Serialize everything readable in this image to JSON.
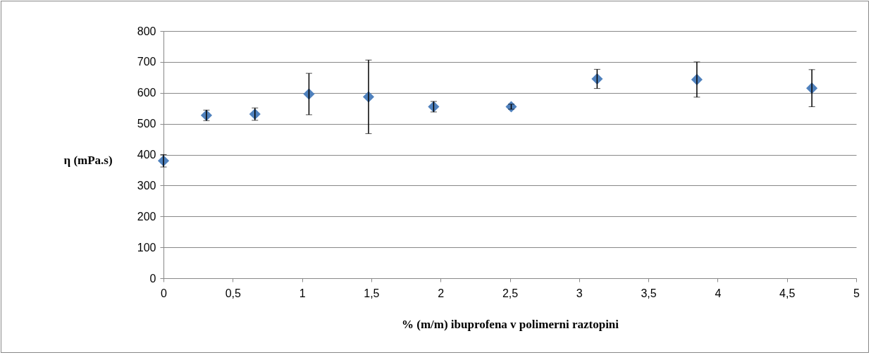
{
  "chart_data": {
    "type": "scatter",
    "xlabel": "% (m/m) ibuprofena v polimerni raztopini",
    "ylabel": "η (mPa.s)",
    "x": [
      0,
      0.31,
      0.66,
      1.05,
      1.48,
      1.95,
      2.51,
      3.13,
      3.85,
      4.68
    ],
    "series": [
      {
        "color": "#4f81bd",
        "values": [
          380,
          527,
          531,
          596,
          587,
          555,
          555,
          645,
          643,
          615
        ],
        "errors": [
          20,
          17,
          20,
          67,
          119,
          17,
          8,
          31,
          57,
          60
        ]
      }
    ],
    "xlim": [
      0,
      5
    ],
    "xticks": [
      0,
      {
        "value": 0.5,
        "label": "0,5"
      },
      1,
      {
        "value": 1.5,
        "label": "1,5"
      },
      2,
      {
        "value": 2.5,
        "label": "2,5"
      },
      3,
      {
        "value": 3.5,
        "label": "3,5"
      },
      4,
      {
        "value": 4.5,
        "label": "4,5"
      },
      5
    ],
    "ylim": [
      0,
      800
    ],
    "yticks": [
      0,
      100,
      200,
      300,
      400,
      500,
      600,
      700,
      800
    ],
    "grid": "y",
    "marker": "diamond",
    "legend": false
  }
}
